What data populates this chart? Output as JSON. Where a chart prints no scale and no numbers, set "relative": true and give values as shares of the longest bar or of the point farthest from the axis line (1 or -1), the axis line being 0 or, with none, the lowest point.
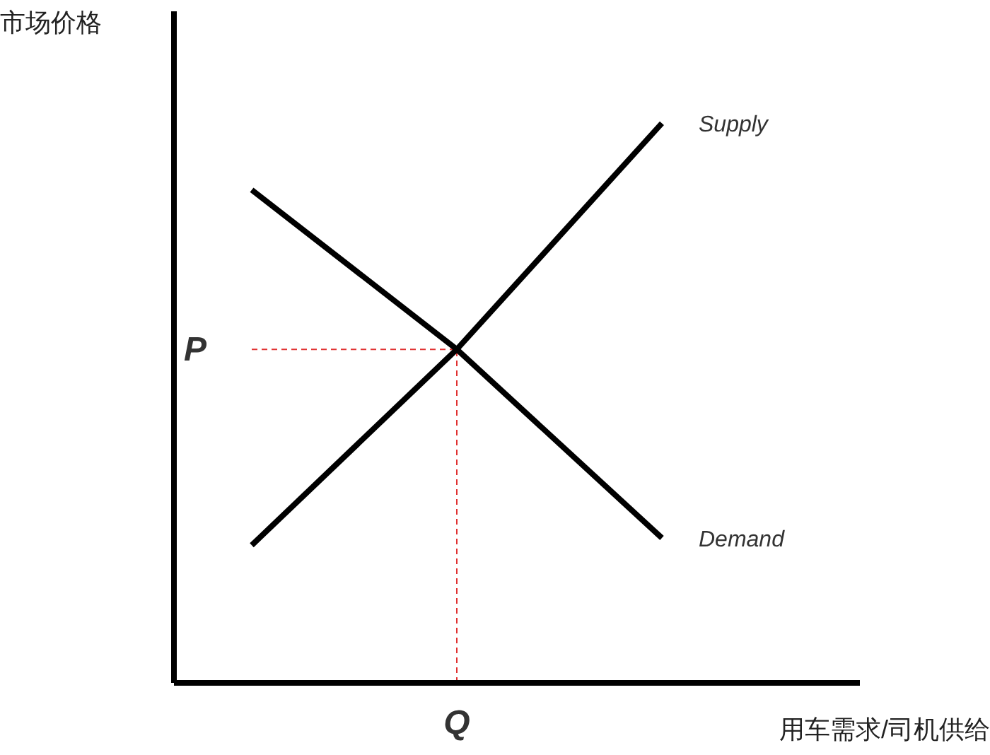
{
  "chart_data": {
    "type": "line",
    "relative": true,
    "ylabel": "市场价格",
    "xlabel": "用车需求/司机供给",
    "categories": [
      null,
      null,
      null
    ],
    "series": [
      {
        "name": "Supply",
        "color": "#000000",
        "values": [
          0.246,
          0.596,
          1
        ]
      },
      {
        "name": "Demand",
        "color": "#000000",
        "values": [
          0.881,
          0.596,
          0.259
        ]
      }
    ],
    "ref_lines": [
      {
        "axis": "y",
        "value": 0.596,
        "label": "P",
        "color": "#e03030",
        "line_style": "dashed"
      },
      {
        "axis": "x",
        "label": "Q",
        "color": "#e03030",
        "line_style": "dashed"
      }
    ],
    "legend": false,
    "grid": false,
    "marker": "none",
    "line_style": "solid"
  }
}
